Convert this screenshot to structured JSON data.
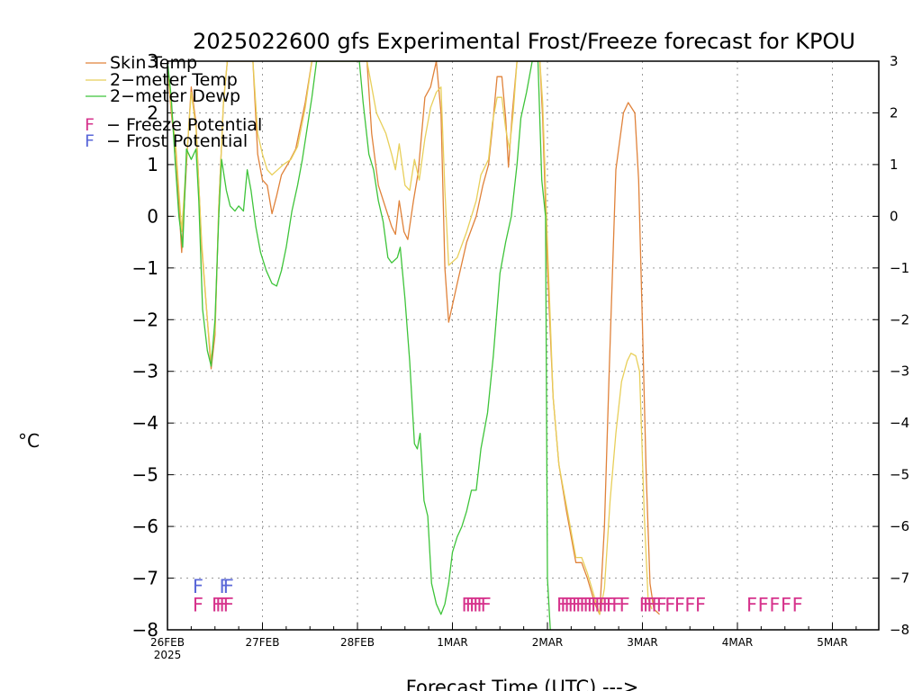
{
  "chart_data": {
    "type": "line",
    "title": "2025022600 gfs Experimental Frost/Freeze forecast for KPOU",
    "ylabel": "°C",
    "xlabel": "Forecast Time (UTC) --->",
    "x_unit": "days since 26FEB2025 00Z",
    "ylim": [
      -8,
      3
    ],
    "xlim": [
      0,
      7.5
    ],
    "yticks": [
      3,
      2,
      1,
      0,
      -1,
      -2,
      -3,
      -4,
      -5,
      -6,
      -7,
      -8
    ],
    "ytick_labels": [
      "3",
      "2",
      "1",
      "0",
      "−1",
      "−2",
      "−3",
      "−4",
      "−5",
      "−6",
      "−7",
      "−8"
    ],
    "xticks": [
      {
        "x": 0,
        "label": "26FEB",
        "sublabel": "2025"
      },
      {
        "x": 1,
        "label": "27FEB"
      },
      {
        "x": 2,
        "label": "28FEB"
      },
      {
        "x": 3,
        "label": "1MAR"
      },
      {
        "x": 4,
        "label": "2MAR"
      },
      {
        "x": 5,
        "label": "3MAR"
      },
      {
        "x": 6,
        "label": "4MAR"
      },
      {
        "x": 7,
        "label": "5MAR"
      }
    ],
    "grid": true,
    "legend_placement": "top-left",
    "series": [
      {
        "name": "Skin Temp",
        "color": "#e0823a",
        "points": [
          [
            0.0,
            2.9
          ],
          [
            0.04,
            2.0
          ],
          [
            0.09,
            1.2
          ],
          [
            0.15,
            -0.7
          ],
          [
            0.2,
            1.0
          ],
          [
            0.25,
            2.5
          ],
          [
            0.3,
            1.8
          ],
          [
            0.36,
            -0.6
          ],
          [
            0.42,
            -2.0
          ],
          [
            0.46,
            -2.95
          ],
          [
            0.5,
            -2.3
          ],
          [
            0.54,
            0.2
          ],
          [
            0.59,
            2.2
          ],
          [
            0.63,
            3.0
          ],
          [
            0.9,
            3.0
          ],
          [
            0.95,
            1.2
          ],
          [
            1.0,
            0.7
          ],
          [
            1.05,
            0.6
          ],
          [
            1.1,
            0.05
          ],
          [
            1.15,
            0.4
          ],
          [
            1.2,
            0.8
          ],
          [
            1.28,
            1.05
          ],
          [
            1.35,
            1.3
          ],
          [
            1.45,
            2.2
          ],
          [
            1.52,
            3.0
          ],
          [
            2.1,
            3.0
          ],
          [
            2.15,
            1.6
          ],
          [
            2.22,
            0.6
          ],
          [
            2.29,
            0.2
          ],
          [
            2.36,
            -0.2
          ],
          [
            2.4,
            -0.35
          ],
          [
            2.44,
            0.3
          ],
          [
            2.49,
            -0.3
          ],
          [
            2.53,
            -0.45
          ],
          [
            2.59,
            0.3
          ],
          [
            2.64,
            0.85
          ],
          [
            2.71,
            2.3
          ],
          [
            2.77,
            2.5
          ],
          [
            2.83,
            3.0
          ],
          [
            2.88,
            2.0
          ],
          [
            2.92,
            -1.0
          ],
          [
            2.96,
            -2.05
          ],
          [
            3.05,
            -1.3
          ],
          [
            3.15,
            -0.5
          ],
          [
            3.25,
            0.0
          ],
          [
            3.32,
            0.6
          ],
          [
            3.38,
            1.0
          ],
          [
            3.42,
            1.7
          ],
          [
            3.47,
            2.7
          ],
          [
            3.52,
            2.7
          ],
          [
            3.56,
            1.9
          ],
          [
            3.59,
            0.95
          ],
          [
            3.63,
            2.0
          ],
          [
            3.68,
            3.0
          ],
          [
            3.92,
            3.0
          ],
          [
            3.95,
            1.9
          ],
          [
            4.0,
            -1.0
          ],
          [
            4.06,
            -3.5
          ],
          [
            4.12,
            -4.8
          ],
          [
            4.2,
            -5.7
          ],
          [
            4.26,
            -6.3
          ],
          [
            4.3,
            -6.7
          ],
          [
            4.36,
            -6.7
          ],
          [
            4.42,
            -7.0
          ],
          [
            4.5,
            -7.5
          ],
          [
            4.55,
            -7.7
          ],
          [
            4.6,
            -6.0
          ],
          [
            4.65,
            -3.0
          ],
          [
            4.72,
            0.9
          ],
          [
            4.8,
            2.0
          ],
          [
            4.85,
            2.2
          ],
          [
            4.92,
            2.0
          ],
          [
            4.96,
            0.7
          ],
          [
            5.0,
            -2.1
          ],
          [
            5.04,
            -5.0
          ],
          [
            5.08,
            -7.1
          ],
          [
            5.12,
            -7.6
          ],
          [
            5.18,
            -7.7
          ]
        ]
      },
      {
        "name": "2-meter Temp",
        "color": "#e8cf5a",
        "points": [
          [
            0.0,
            2.9
          ],
          [
            0.04,
            2.1
          ],
          [
            0.09,
            1.3
          ],
          [
            0.15,
            -0.3
          ],
          [
            0.2,
            1.1
          ],
          [
            0.25,
            2.4
          ],
          [
            0.3,
            1.7
          ],
          [
            0.36,
            -0.5
          ],
          [
            0.42,
            -2.0
          ],
          [
            0.46,
            -2.8
          ],
          [
            0.5,
            -2.2
          ],
          [
            0.54,
            0.2
          ],
          [
            0.59,
            2.2
          ],
          [
            0.63,
            3.0
          ],
          [
            0.9,
            3.0
          ],
          [
            0.95,
            1.6
          ],
          [
            1.0,
            1.2
          ],
          [
            1.05,
            0.9
          ],
          [
            1.1,
            0.8
          ],
          [
            1.16,
            0.9
          ],
          [
            1.22,
            1.0
          ],
          [
            1.3,
            1.1
          ],
          [
            1.37,
            1.35
          ],
          [
            1.45,
            2.1
          ],
          [
            1.52,
            3.0
          ],
          [
            2.1,
            3.0
          ],
          [
            2.2,
            2.0
          ],
          [
            2.3,
            1.6
          ],
          [
            2.36,
            1.2
          ],
          [
            2.4,
            0.9
          ],
          [
            2.44,
            1.4
          ],
          [
            2.5,
            0.6
          ],
          [
            2.55,
            0.5
          ],
          [
            2.6,
            1.1
          ],
          [
            2.65,
            0.7
          ],
          [
            2.71,
            1.5
          ],
          [
            2.77,
            2.1
          ],
          [
            2.83,
            2.4
          ],
          [
            2.88,
            2.5
          ],
          [
            2.92,
            0.5
          ],
          [
            2.96,
            -0.95
          ],
          [
            3.05,
            -0.8
          ],
          [
            3.15,
            -0.3
          ],
          [
            3.25,
            0.3
          ],
          [
            3.3,
            0.8
          ],
          [
            3.38,
            1.1
          ],
          [
            3.42,
            1.8
          ],
          [
            3.47,
            2.3
          ],
          [
            3.52,
            2.3
          ],
          [
            3.56,
            1.7
          ],
          [
            3.6,
            1.3
          ],
          [
            3.64,
            2.0
          ],
          [
            3.68,
            3.0
          ],
          [
            3.92,
            3.0
          ],
          [
            3.95,
            2.2
          ],
          [
            4.0,
            -0.5
          ],
          [
            4.06,
            -3.5
          ],
          [
            4.12,
            -4.8
          ],
          [
            4.2,
            -5.6
          ],
          [
            4.26,
            -6.2
          ],
          [
            4.3,
            -6.6
          ],
          [
            4.36,
            -6.6
          ],
          [
            4.42,
            -6.9
          ],
          [
            4.5,
            -7.4
          ],
          [
            4.55,
            -7.7
          ],
          [
            4.6,
            -7.2
          ],
          [
            4.66,
            -5.5
          ],
          [
            4.72,
            -4.2
          ],
          [
            4.78,
            -3.2
          ],
          [
            4.84,
            -2.8
          ],
          [
            4.88,
            -2.65
          ],
          [
            4.93,
            -2.7
          ],
          [
            4.97,
            -3.0
          ],
          [
            5.02,
            -5.8
          ],
          [
            5.06,
            -7.4
          ],
          [
            5.1,
            -7.6
          ]
        ]
      },
      {
        "name": "2-meter Dewp",
        "color": "#3ec43a",
        "points": [
          [
            0.0,
            3.0
          ],
          [
            0.04,
            2.3
          ],
          [
            0.08,
            1.1
          ],
          [
            0.12,
            0.0
          ],
          [
            0.16,
            -0.6
          ],
          [
            0.2,
            1.3
          ],
          [
            0.25,
            1.1
          ],
          [
            0.3,
            1.3
          ],
          [
            0.33,
            0.3
          ],
          [
            0.37,
            -1.8
          ],
          [
            0.42,
            -2.6
          ],
          [
            0.46,
            -2.9
          ],
          [
            0.5,
            -2.0
          ],
          [
            0.54,
            0.0
          ],
          [
            0.57,
            1.1
          ],
          [
            0.62,
            0.5
          ],
          [
            0.66,
            0.2
          ],
          [
            0.71,
            0.1
          ],
          [
            0.75,
            0.2
          ],
          [
            0.8,
            0.1
          ],
          [
            0.84,
            0.9
          ],
          [
            0.88,
            0.5
          ],
          [
            0.93,
            -0.2
          ],
          [
            0.98,
            -0.7
          ],
          [
            1.04,
            -1.05
          ],
          [
            1.1,
            -1.3
          ],
          [
            1.15,
            -1.35
          ],
          [
            1.2,
            -1.05
          ],
          [
            1.25,
            -0.6
          ],
          [
            1.31,
            0.1
          ],
          [
            1.37,
            0.6
          ],
          [
            1.42,
            1.1
          ],
          [
            1.47,
            1.7
          ],
          [
            1.52,
            2.3
          ],
          [
            1.57,
            3.0
          ],
          [
            2.02,
            3.0
          ],
          [
            2.06,
            2.2
          ],
          [
            2.12,
            1.2
          ],
          [
            2.17,
            0.9
          ],
          [
            2.22,
            0.3
          ],
          [
            2.27,
            -0.1
          ],
          [
            2.32,
            -0.8
          ],
          [
            2.36,
            -0.9
          ],
          [
            2.42,
            -0.8
          ],
          [
            2.45,
            -0.6
          ],
          [
            2.5,
            -1.6
          ],
          [
            2.55,
            -2.8
          ],
          [
            2.6,
            -4.4
          ],
          [
            2.63,
            -4.5
          ],
          [
            2.66,
            -4.2
          ],
          [
            2.7,
            -5.5
          ],
          [
            2.74,
            -5.8
          ],
          [
            2.78,
            -7.1
          ],
          [
            2.83,
            -7.5
          ],
          [
            2.88,
            -7.7
          ],
          [
            2.92,
            -7.5
          ],
          [
            2.96,
            -7.1
          ],
          [
            3.0,
            -6.5
          ],
          [
            3.05,
            -6.2
          ],
          [
            3.1,
            -6.0
          ],
          [
            3.15,
            -5.7
          ],
          [
            3.2,
            -5.3
          ],
          [
            3.25,
            -5.3
          ],
          [
            3.3,
            -4.5
          ],
          [
            3.37,
            -3.8
          ],
          [
            3.43,
            -2.7
          ],
          [
            3.5,
            -1.1
          ],
          [
            3.56,
            -0.5
          ],
          [
            3.62,
            0.0
          ],
          [
            3.68,
            1.0
          ],
          [
            3.72,
            1.9
          ],
          [
            3.78,
            2.4
          ],
          [
            3.84,
            3.0
          ],
          [
            3.9,
            3.0
          ],
          [
            3.94,
            0.7
          ],
          [
            3.98,
            0.0
          ],
          [
            4.0,
            -7.0
          ],
          [
            4.03,
            -8.0
          ]
        ]
      }
    ],
    "potential_markers": {
      "frost": {
        "label": "F − Frost Potential",
        "color": "#5a67d8",
        "glyph": "F",
        "y": -7.15,
        "x": [
          0.17,
          0.45,
          0.49
        ]
      },
      "freeze": {
        "label": "F − Freeze Potential",
        "color": "#d6338c",
        "glyph": "F",
        "y": -7.5,
        "x": [
          0.17,
          0.37,
          0.41,
          0.45,
          0.49,
          3.0,
          3.04,
          3.08,
          3.12,
          3.16,
          3.2,
          4.0,
          4.04,
          4.08,
          4.12,
          4.16,
          4.2,
          4.24,
          4.28,
          4.32,
          4.36,
          4.4,
          4.44,
          4.48,
          4.52,
          4.58,
          4.66,
          4.87,
          4.91,
          4.95,
          5.0,
          5.05,
          5.14,
          5.24,
          5.35,
          5.46,
          6.0,
          6.12,
          6.24,
          6.36,
          6.48
        ]
      }
    },
    "legend_entries": [
      {
        "key": "skin",
        "label": "Skin Temp",
        "color": "#e0823a",
        "type": "line"
      },
      {
        "key": "t2m",
        "label": "2−meter Temp",
        "color": "#e8cf5a",
        "type": "line"
      },
      {
        "key": "d2m",
        "label": "2−meter Dewp",
        "color": "#3ec43a",
        "type": "line"
      },
      {
        "key": "freeze",
        "glyph": "F",
        "label": "− Freeze Potential",
        "color": "#d6338c",
        "type": "glyph"
      },
      {
        "key": "frost",
        "glyph": "F",
        "label": "− Frost Potential",
        "color": "#5a67d8",
        "type": "glyph"
      }
    ]
  }
}
